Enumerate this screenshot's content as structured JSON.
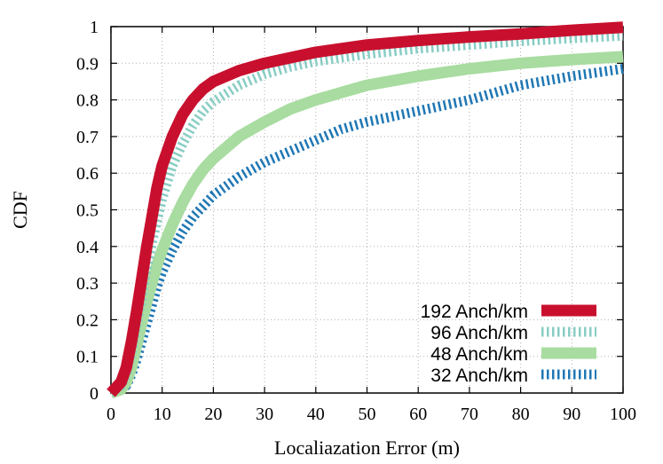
{
  "chart_data": {
    "type": "line",
    "xlabel": "Localiazation Error (m)",
    "ylabel": "CDF",
    "xlim": [
      0,
      100
    ],
    "ylim": [
      0,
      1
    ],
    "xticks": [
      "0",
      "10",
      "20",
      "30",
      "40",
      "50",
      "60",
      "70",
      "80",
      "90",
      "100"
    ],
    "yticks": [
      "0",
      "0.1",
      "0.2",
      "0.3",
      "0.4",
      "0.5",
      "0.6",
      "0.7",
      "0.8",
      "0.9",
      "1"
    ],
    "grid": true,
    "legend_position": "bottom-right",
    "series": [
      {
        "name": "192 Anch/km",
        "color": "#c8102e",
        "style": "solid",
        "points": [
          [
            0,
            0
          ],
          [
            2,
            0.03
          ],
          [
            3,
            0.07
          ],
          [
            4,
            0.14
          ],
          [
            5,
            0.22
          ],
          [
            6,
            0.31
          ],
          [
            7,
            0.4
          ],
          [
            8,
            0.48
          ],
          [
            9,
            0.56
          ],
          [
            10,
            0.62
          ],
          [
            12,
            0.7
          ],
          [
            14,
            0.76
          ],
          [
            16,
            0.8
          ],
          [
            18,
            0.83
          ],
          [
            20,
            0.85
          ],
          [
            25,
            0.88
          ],
          [
            30,
            0.9
          ],
          [
            35,
            0.915
          ],
          [
            40,
            0.93
          ],
          [
            45,
            0.94
          ],
          [
            50,
            0.95
          ],
          [
            60,
            0.962
          ],
          [
            70,
            0.972
          ],
          [
            80,
            0.98
          ],
          [
            90,
            0.99
          ],
          [
            100,
            0.998
          ]
        ]
      },
      {
        "name": "96 Anch/km",
        "color": "#88cdc4",
        "style": "dashed",
        "points": [
          [
            0,
            0
          ],
          [
            2,
            0.02
          ],
          [
            3,
            0.05
          ],
          [
            4,
            0.11
          ],
          [
            5,
            0.18
          ],
          [
            6,
            0.26
          ],
          [
            7,
            0.34
          ],
          [
            8,
            0.41
          ],
          [
            9,
            0.47
          ],
          [
            10,
            0.53
          ],
          [
            12,
            0.62
          ],
          [
            14,
            0.68
          ],
          [
            16,
            0.73
          ],
          [
            18,
            0.77
          ],
          [
            20,
            0.795
          ],
          [
            25,
            0.84
          ],
          [
            30,
            0.87
          ],
          [
            35,
            0.89
          ],
          [
            40,
            0.905
          ],
          [
            45,
            0.915
          ],
          [
            50,
            0.925
          ],
          [
            60,
            0.94
          ],
          [
            70,
            0.95
          ],
          [
            80,
            0.96
          ],
          [
            90,
            0.968
          ],
          [
            100,
            0.975
          ]
        ]
      },
      {
        "name": "48 Anch/km",
        "color": "#a8dca0",
        "style": "solid",
        "points": [
          [
            0,
            0
          ],
          [
            2,
            0.01
          ],
          [
            3,
            0.03
          ],
          [
            4,
            0.07
          ],
          [
            5,
            0.13
          ],
          [
            6,
            0.19
          ],
          [
            7,
            0.25
          ],
          [
            8,
            0.3
          ],
          [
            9,
            0.35
          ],
          [
            10,
            0.39
          ],
          [
            12,
            0.46
          ],
          [
            14,
            0.52
          ],
          [
            16,
            0.57
          ],
          [
            18,
            0.61
          ],
          [
            20,
            0.64
          ],
          [
            25,
            0.7
          ],
          [
            30,
            0.74
          ],
          [
            35,
            0.775
          ],
          [
            40,
            0.8
          ],
          [
            45,
            0.82
          ],
          [
            50,
            0.84
          ],
          [
            60,
            0.865
          ],
          [
            70,
            0.885
          ],
          [
            80,
            0.9
          ],
          [
            90,
            0.91
          ],
          [
            100,
            0.918
          ]
        ]
      },
      {
        "name": "32 Anch/km",
        "color": "#1f77b4",
        "style": "dashed",
        "points": [
          [
            0,
            0
          ],
          [
            2,
            0.01
          ],
          [
            3,
            0.02
          ],
          [
            4,
            0.05
          ],
          [
            5,
            0.09
          ],
          [
            6,
            0.14
          ],
          [
            7,
            0.19
          ],
          [
            8,
            0.24
          ],
          [
            9,
            0.29
          ],
          [
            10,
            0.33
          ],
          [
            12,
            0.39
          ],
          [
            14,
            0.44
          ],
          [
            16,
            0.48
          ],
          [
            18,
            0.51
          ],
          [
            20,
            0.54
          ],
          [
            25,
            0.59
          ],
          [
            30,
            0.63
          ],
          [
            35,
            0.66
          ],
          [
            40,
            0.69
          ],
          [
            45,
            0.72
          ],
          [
            50,
            0.74
          ],
          [
            60,
            0.77
          ],
          [
            70,
            0.8
          ],
          [
            80,
            0.84
          ],
          [
            90,
            0.865
          ],
          [
            100,
            0.885
          ]
        ]
      }
    ]
  }
}
